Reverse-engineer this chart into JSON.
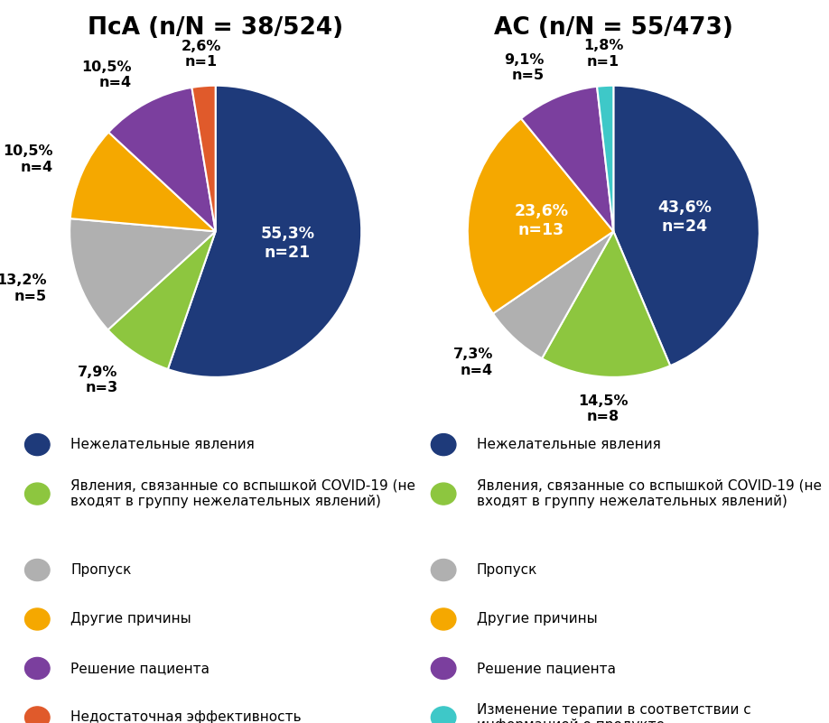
{
  "title_left": "ПсА (n/N = 38/524)",
  "title_right": "АС (n/N = 55/473)",
  "background_color": "#ffffff",
  "pie_left": {
    "values": [
      55.3,
      7.9,
      13.2,
      10.5,
      10.5,
      2.6
    ],
    "labels_line1": [
      "55,3%",
      "7,9%",
      "13,2%",
      "10,5%",
      "10,5%",
      "2,6%"
    ],
    "labels_line2": [
      "n=21",
      "n=3",
      "n=5",
      "n=4",
      "n=4",
      "n=1"
    ],
    "colors": [
      "#1e3a7a",
      "#8dc63f",
      "#b0b0b0",
      "#f5a800",
      "#7b3f9e",
      "#e05a2b"
    ],
    "startangle": 90,
    "inner_label_idx": [
      0
    ],
    "outer_label_idx": [
      1,
      2,
      3,
      4,
      5
    ]
  },
  "pie_right": {
    "values": [
      43.6,
      14.5,
      7.3,
      23.6,
      9.1,
      1.8
    ],
    "labels_line1": [
      "43,6%",
      "14,5%",
      "7,3%",
      "23,6%",
      "9,1%",
      "1,8%"
    ],
    "labels_line2": [
      "n=24",
      "n=8",
      "n=4",
      "n=13",
      "n=5",
      "n=1"
    ],
    "colors": [
      "#1e3a7a",
      "#8dc63f",
      "#b0b0b0",
      "#f5a800",
      "#7b3f9e",
      "#3ec8c8"
    ],
    "startangle": 90,
    "inner_label_idx": [
      0
    ],
    "outer_label_idx": [
      1,
      2,
      3,
      4,
      5
    ]
  },
  "legend_left": [
    {
      "label": "Нежелательные явления",
      "color": "#1e3a7a"
    },
    {
      "label": "Явления, связанные со вспышкой COVID-19 (не\nвходят в группу нежелательных явлений)",
      "color": "#8dc63f"
    },
    {
      "label": "Пропуск",
      "color": "#b0b0b0"
    },
    {
      "label": "Другие причины",
      "color": "#f5a800"
    },
    {
      "label": "Решение пациента",
      "color": "#7b3f9e"
    },
    {
      "label": "Недостаточная эффективность",
      "color": "#e05a2b"
    }
  ],
  "legend_right": [
    {
      "label": "Нежелательные явления",
      "color": "#1e3a7a"
    },
    {
      "label": "Явления, связанные со вспышкой COVID-19 (не\nвходят в группу нежелательных явлений)",
      "color": "#8dc63f"
    },
    {
      "label": "Пропуск",
      "color": "#b0b0b0"
    },
    {
      "label": "Другие причины",
      "color": "#f5a800"
    },
    {
      "label": "Решение пациента",
      "color": "#7b3f9e"
    },
    {
      "label": "Изменение терапии в соответствии с\nинформацией о продукте",
      "color": "#3ec8c8"
    }
  ],
  "label_fontsize": 11.5,
  "title_fontsize": 19,
  "legend_fontsize": 11
}
